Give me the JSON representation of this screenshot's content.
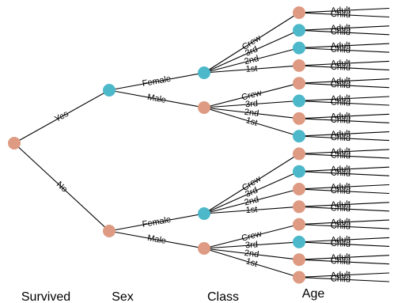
{
  "levels": [
    "Survived",
    "Sex",
    "Class",
    "Age"
  ],
  "colors": {
    "teal": "#4CB8C9",
    "salmon": "#DE9A82"
  },
  "tree": {
    "color": "salmon",
    "children": [
      {
        "label": "Yes",
        "color": "teal",
        "children": [
          {
            "label": "Female",
            "color": "teal",
            "children": [
              {
                "label": "Crew",
                "color": "salmon",
                "children": [
                  {
                    "label": "Adult"
                  },
                  {
                    "label": "Child"
                  }
                ]
              },
              {
                "label": "3rd",
                "color": "teal",
                "children": [
                  {
                    "label": "Adult"
                  },
                  {
                    "label": "Child"
                  }
                ]
              },
              {
                "label": "2nd",
                "color": "teal",
                "children": [
                  {
                    "label": "Adult"
                  },
                  {
                    "label": "Child"
                  }
                ]
              },
              {
                "label": "1st",
                "color": "salmon",
                "children": [
                  {
                    "label": "Adult"
                  },
                  {
                    "label": "Child"
                  }
                ]
              }
            ]
          },
          {
            "label": "Male",
            "color": "salmon",
            "children": [
              {
                "label": "Crew",
                "color": "salmon",
                "children": [
                  {
                    "label": "Adult"
                  },
                  {
                    "label": "Child"
                  }
                ]
              },
              {
                "label": "3rd",
                "color": "teal",
                "children": [
                  {
                    "label": "Adult"
                  },
                  {
                    "label": "Child"
                  }
                ]
              },
              {
                "label": "2nd",
                "color": "salmon",
                "children": [
                  {
                    "label": "Adult"
                  },
                  {
                    "label": "Child"
                  }
                ]
              },
              {
                "label": "1st",
                "color": "teal",
                "children": [
                  {
                    "label": "Adult"
                  },
                  {
                    "label": "Child"
                  }
                ]
              }
            ]
          }
        ]
      },
      {
        "label": "No",
        "color": "salmon",
        "children": [
          {
            "label": "Female",
            "color": "teal",
            "children": [
              {
                "label": "Crew",
                "color": "salmon",
                "children": [
                  {
                    "label": "Adult"
                  },
                  {
                    "label": "Child"
                  }
                ]
              },
              {
                "label": "3rd",
                "color": "teal",
                "children": [
                  {
                    "label": "Adult"
                  },
                  {
                    "label": "Child"
                  }
                ]
              },
              {
                "label": "2nd",
                "color": "salmon",
                "children": [
                  {
                    "label": "Adult"
                  },
                  {
                    "label": "Child"
                  }
                ]
              },
              {
                "label": "1st",
                "color": "salmon",
                "children": [
                  {
                    "label": "Adult"
                  },
                  {
                    "label": "Child"
                  }
                ]
              }
            ]
          },
          {
            "label": "Male",
            "color": "salmon",
            "children": [
              {
                "label": "Crew",
                "color": "salmon",
                "children": [
                  {
                    "label": "Adult"
                  },
                  {
                    "label": "Child"
                  }
                ]
              },
              {
                "label": "3rd",
                "color": "teal",
                "children": [
                  {
                    "label": "Adult"
                  },
                  {
                    "label": "Child"
                  }
                ]
              },
              {
                "label": "2nd",
                "color": "salmon",
                "children": [
                  {
                    "label": "Adult"
                  },
                  {
                    "label": "Child"
                  }
                ]
              },
              {
                "label": "1st",
                "color": "salmon",
                "children": [
                  {
                    "label": "Adult"
                  },
                  {
                    "label": "Child"
                  }
                ]
              }
            ]
          }
        ]
      }
    ]
  }
}
